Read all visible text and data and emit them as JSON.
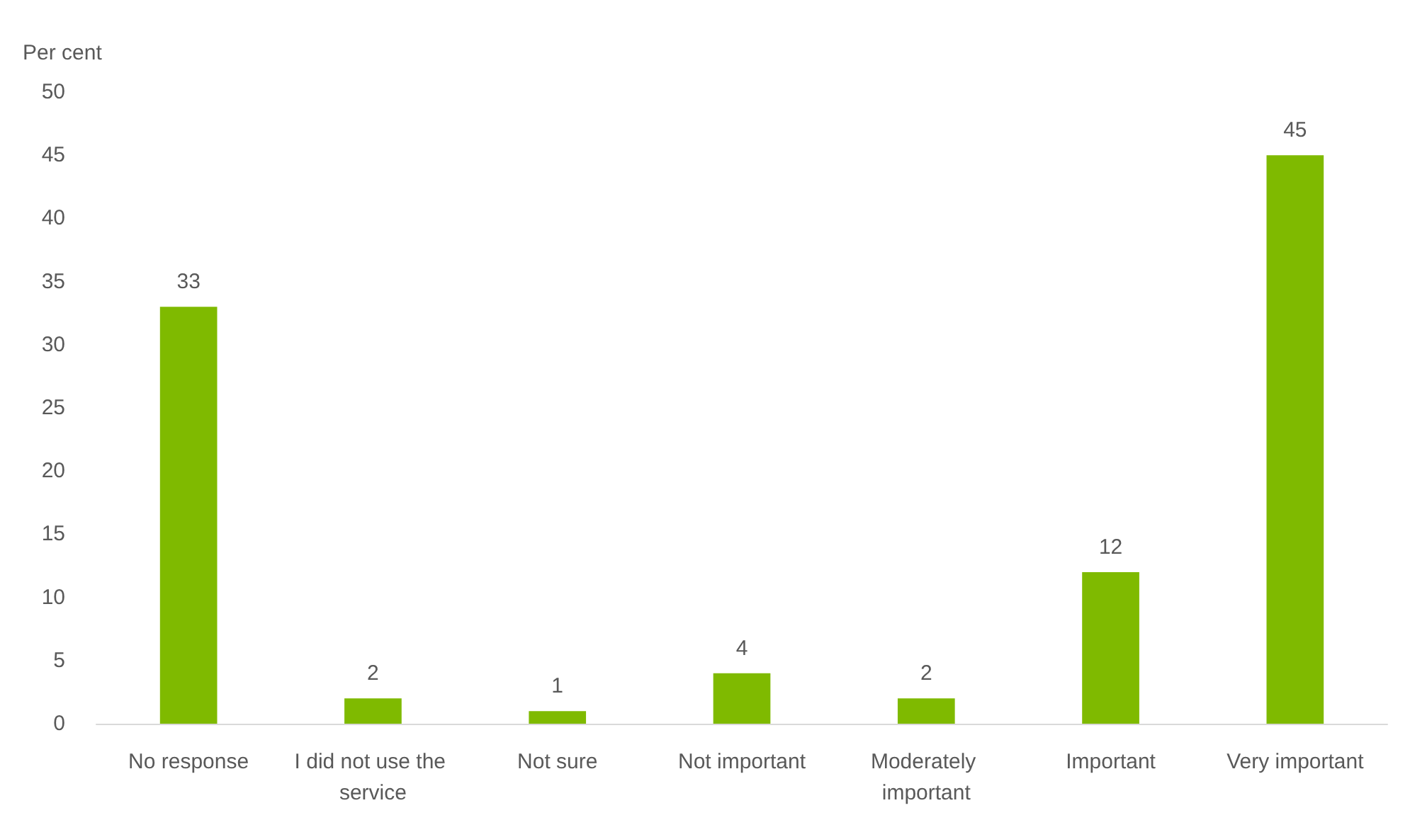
{
  "chart_data": {
    "type": "bar",
    "ylabel": "Per cent",
    "categories": [
      "No response",
      "I did not use the service",
      "Not sure",
      "Not important",
      "Moderately important",
      "Important",
      "Very important"
    ],
    "values": [
      33,
      2,
      1,
      4,
      2,
      12,
      45
    ],
    "color": "#7fba00",
    "ylim": [
      0,
      50
    ],
    "yticks": [
      0,
      5,
      10,
      15,
      20,
      25,
      30,
      35,
      40,
      45,
      50
    ],
    "grid": false,
    "data_labels": true
  }
}
